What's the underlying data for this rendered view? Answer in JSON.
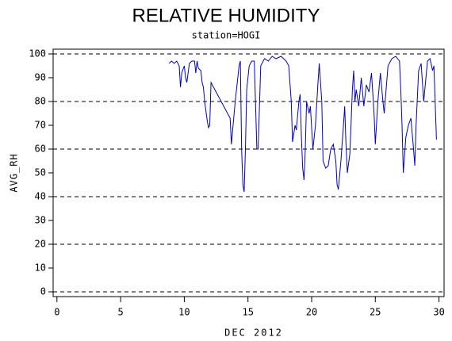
{
  "chart_data": {
    "type": "line",
    "title": "RELATIVE HUMIDITY",
    "subtitle": "station=HOGI",
    "x_label": "DEC 2012",
    "y_label": "AVG_RH",
    "xlim": [
      -0.3,
      30.4
    ],
    "ylim": [
      -2,
      102
    ],
    "xticks": [
      0,
      5,
      10,
      15,
      20,
      25,
      30
    ],
    "yticks": [
      0,
      10,
      20,
      30,
      40,
      50,
      60,
      70,
      80,
      90,
      100
    ],
    "grid": true,
    "series": [
      {
        "name": "AVG_RH",
        "color": "#0000cc",
        "x": [
          8.8,
          9.0,
          9.2,
          9.4,
          9.6,
          9.7,
          9.8,
          10.0,
          10.1,
          10.2,
          10.4,
          10.6,
          10.8,
          10.9,
          11.0,
          11.1,
          11.3,
          11.4,
          11.5,
          11.6,
          11.8,
          11.9,
          12.0,
          12.1,
          13.6,
          13.7,
          14.0,
          14.3,
          14.4,
          14.5,
          14.6,
          14.7,
          14.8,
          14.9,
          15.1,
          15.3,
          15.5,
          15.7,
          15.8,
          16.0,
          16.3,
          16.6,
          16.9,
          17.2,
          17.6,
          18.0,
          18.2,
          18.4,
          18.5,
          18.7,
          18.8,
          19.0,
          19.1,
          19.2,
          19.3,
          19.4,
          19.5,
          19.6,
          19.8,
          19.9,
          20.1,
          20.3,
          20.5,
          20.6,
          20.8,
          20.9,
          21.1,
          21.3,
          21.5,
          21.7,
          21.9,
          22.0,
          22.1,
          22.3,
          22.5,
          22.6,
          22.7,
          22.8,
          23.0,
          23.2,
          23.3,
          23.4,
          23.5,
          23.7,
          23.9,
          24.1,
          24.3,
          24.5,
          24.7,
          24.9,
          25.0,
          25.2,
          25.4,
          25.6,
          25.7,
          26.0,
          26.3,
          26.6,
          26.9,
          27.0,
          27.1,
          27.2,
          27.4,
          27.6,
          27.8,
          28.0,
          28.1,
          28.2,
          28.4,
          28.6,
          28.8,
          29.1,
          29.3,
          29.5,
          29.6,
          29.8
        ],
        "values": [
          96,
          97,
          96,
          97,
          95,
          86,
          92,
          95,
          90,
          88,
          96,
          97,
          97,
          92,
          97,
          94,
          93,
          88,
          86,
          80,
          72,
          69,
          70,
          88,
          73,
          62,
          80,
          95,
          97,
          60,
          45,
          42,
          60,
          85,
          95,
          97,
          97,
          60,
          60,
          95,
          98,
          97,
          99,
          98,
          99,
          97,
          95,
          80,
          63,
          70,
          68,
          80,
          83,
          65,
          52,
          47,
          60,
          80,
          75,
          78,
          60,
          70,
          88,
          96,
          80,
          55,
          52,
          53,
          60,
          62,
          55,
          45,
          43,
          55,
          70,
          78,
          62,
          50,
          58,
          85,
          93,
          80,
          85,
          78,
          90,
          78,
          87,
          84,
          92,
          75,
          62,
          80,
          92,
          80,
          75,
          95,
          98,
          99,
          97,
          85,
          70,
          50,
          65,
          70,
          73,
          60,
          53,
          70,
          93,
          96,
          80,
          97,
          98,
          93,
          95,
          64
        ]
      }
    ]
  }
}
